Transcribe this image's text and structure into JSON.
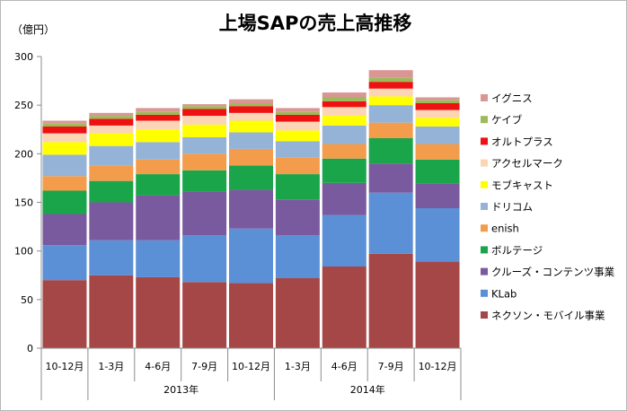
{
  "chart_data": {
    "type": "bar",
    "stacked": true,
    "title": "上場SAPの売上高推移",
    "ylabel": "（億円）",
    "ylim": [
      0,
      300
    ],
    "yticks": [
      0,
      50,
      100,
      150,
      200,
      250,
      300
    ],
    "grid": false,
    "legend_position": "right",
    "categories": [
      "10-12月",
      "1-3月",
      "4-6月",
      "7-9月",
      "10-12月",
      "1-3月",
      "4-6月",
      "7-9月",
      "10-12月"
    ],
    "year_groups": [
      {
        "label": "2013年",
        "start": 1,
        "end": 4
      },
      {
        "label": "2014年",
        "start": 5,
        "end": 8
      }
    ],
    "series": [
      {
        "name": "ネクソン・モバイル事業",
        "color": "#a64747",
        "values": [
          70,
          75,
          73,
          68,
          67,
          72,
          84,
          97,
          89
        ]
      },
      {
        "name": "KLab",
        "color": "#5b8fd6",
        "values": [
          36,
          36,
          38,
          48,
          56,
          44,
          53,
          63,
          55
        ]
      },
      {
        "name": "クルーズ・コンテンツ事業",
        "color": "#7a5a9e",
        "values": [
          32,
          39,
          46,
          45,
          40,
          37,
          33,
          30,
          25
        ]
      },
      {
        "name": "ボルテージ",
        "color": "#1aa54a",
        "values": [
          24,
          22,
          22,
          22,
          25,
          26,
          25,
          26,
          25
        ]
      },
      {
        "name": "enish",
        "color": "#f29c4c",
        "values": [
          15,
          16,
          15,
          17,
          17,
          17,
          15,
          16,
          16
        ]
      },
      {
        "name": "ドリコム",
        "color": "#95b3d7",
        "values": [
          22,
          20,
          18,
          17,
          17,
          17,
          19,
          18,
          18
        ]
      },
      {
        "name": "モブキャスト",
        "color": "#ffff00",
        "values": [
          13,
          13,
          13,
          13,
          12,
          11,
          10,
          9,
          9
        ]
      },
      {
        "name": "アクセルマーク",
        "color": "#fbd5b5",
        "values": [
          9,
          8,
          9,
          9,
          8,
          9,
          9,
          8,
          8
        ]
      },
      {
        "name": "オルトプラス",
        "color": "#ee1111",
        "values": [
          7,
          7,
          6,
          7,
          7,
          7,
          6,
          7,
          7
        ]
      },
      {
        "name": "ケイブ",
        "color": "#9bbb59",
        "values": [
          3,
          3,
          3,
          3,
          3,
          3,
          4,
          4,
          3
        ]
      },
      {
        "name": "イグニス",
        "color": "#d99694",
        "values": [
          3,
          3,
          4,
          2,
          4,
          4,
          5,
          8,
          3
        ]
      }
    ]
  }
}
